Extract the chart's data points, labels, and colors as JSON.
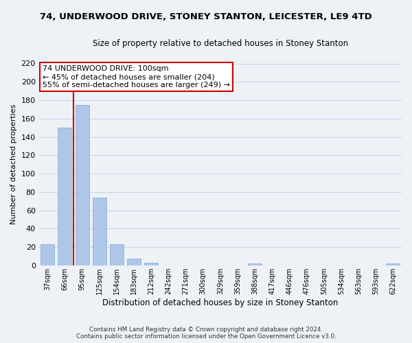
{
  "title": "74, UNDERWOOD DRIVE, STONEY STANTON, LEICESTER, LE9 4TD",
  "subtitle": "Size of property relative to detached houses in Stoney Stanton",
  "xlabel": "Distribution of detached houses by size in Stoney Stanton",
  "ylabel": "Number of detached properties",
  "bar_labels": [
    "37sqm",
    "66sqm",
    "95sqm",
    "125sqm",
    "154sqm",
    "183sqm",
    "212sqm",
    "242sqm",
    "271sqm",
    "300sqm",
    "329sqm",
    "359sqm",
    "388sqm",
    "417sqm",
    "446sqm",
    "476sqm",
    "505sqm",
    "534sqm",
    "563sqm",
    "593sqm",
    "622sqm"
  ],
  "bar_values": [
    23,
    150,
    175,
    74,
    23,
    7,
    3,
    0,
    0,
    0,
    0,
    0,
    2,
    0,
    0,
    0,
    0,
    0,
    0,
    0,
    2
  ],
  "bar_color": "#aec6e8",
  "bar_edge_color": "#7fadd4",
  "grid_color": "#c8d8e8",
  "background_color": "#eef2f7",
  "red_line_x": 1.5,
  "annotation_title": "74 UNDERWOOD DRIVE: 100sqm",
  "annotation_line1": "← 45% of detached houses are smaller (204)",
  "annotation_line2": "55% of semi-detached houses are larger (249) →",
  "annotation_box_color": "#ffffff",
  "annotation_border_color": "#cc0000",
  "ylim": [
    0,
    220
  ],
  "yticks": [
    0,
    20,
    40,
    60,
    80,
    100,
    120,
    140,
    160,
    180,
    200,
    220
  ],
  "footer_line1": "Contains HM Land Registry data © Crown copyright and database right 2024.",
  "footer_line2": "Contains public sector information licensed under the Open Government Licence v3.0."
}
